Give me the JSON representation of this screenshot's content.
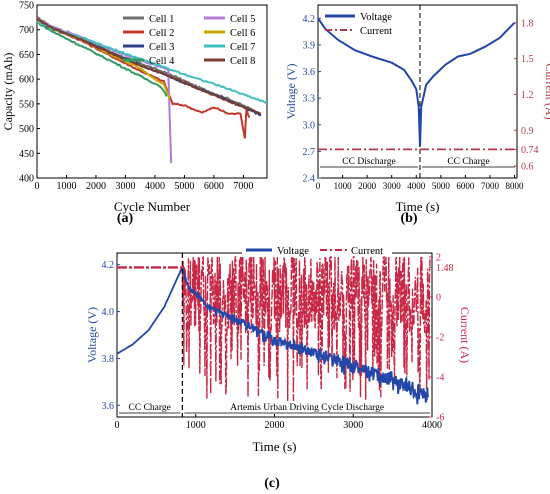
{
  "chart_data": [
    {
      "panel": "(a)",
      "type": "line",
      "xlabel": "Cycle Number",
      "ylabel": "Capacity (mAh)",
      "xlim": [
        0,
        7800
      ],
      "ylim": [
        400,
        750
      ],
      "x_ticks": [
        0,
        1000,
        2000,
        3000,
        4000,
        5000,
        6000,
        7000
      ],
      "y_ticks": [
        400,
        450,
        500,
        550,
        600,
        650,
        700,
        750
      ],
      "legend_placement": "top-right, two columns",
      "series": [
        {
          "name": "Cell 1",
          "color": "#6f6f6f",
          "points": [
            [
              0,
              725
            ],
            [
              500,
              706
            ],
            [
              1500,
              684
            ],
            [
              2500,
              655
            ],
            [
              3500,
              632
            ],
            [
              4500,
              610
            ],
            [
              5500,
              583
            ],
            [
              6500,
              560
            ],
            [
              7500,
              533
            ]
          ]
        },
        {
          "name": "Cell 2",
          "color": "#c0392b",
          "points": [
            [
              0,
              720
            ],
            [
              500,
              703
            ],
            [
              1500,
              678
            ],
            [
              2500,
              647
            ],
            [
              3500,
              617
            ],
            [
              4300,
              595
            ],
            [
              4600,
              550
            ],
            [
              5000,
              547
            ],
            [
              5600,
              532
            ],
            [
              6000,
              543
            ],
            [
              6500,
              530
            ],
            [
              6900,
              530
            ],
            [
              7050,
              480
            ],
            [
              7100,
              540
            ],
            [
              7200,
              522
            ]
          ]
        },
        {
          "name": "Cell 3",
          "color": "#2c3e8c",
          "points": [
            [
              0,
              718
            ],
            [
              500,
              702
            ],
            [
              1500,
              681
            ],
            [
              2500,
              653
            ],
            [
              3500,
              628
            ],
            [
              4500,
              605
            ],
            [
              5500,
              580
            ],
            [
              6500,
              557
            ],
            [
              7600,
              527
            ]
          ]
        },
        {
          "name": "Cell 4",
          "color": "#2e9c62",
          "points": [
            [
              0,
              715
            ],
            [
              500,
              697
            ],
            [
              1500,
              667
            ],
            [
              2500,
              637
            ],
            [
              3500,
              606
            ],
            [
              4200,
              585
            ],
            [
              4400,
              565
            ]
          ]
        },
        {
          "name": "Cell 5",
          "color": "#b07ad9",
          "points": [
            [
              0,
              722
            ],
            [
              500,
              706
            ],
            [
              1500,
              686
            ],
            [
              2500,
              660
            ],
            [
              3500,
              638
            ],
            [
              4200,
              625
            ],
            [
              4450,
              620
            ],
            [
              4550,
              430
            ]
          ]
        },
        {
          "name": "Cell 6",
          "color": "#c8a800",
          "points": [
            [
              0,
              720
            ],
            [
              500,
              703
            ],
            [
              1500,
              680
            ],
            [
              2500,
              650
            ],
            [
              3500,
              622
            ],
            [
              4000,
              600
            ],
            [
              4300,
              590
            ],
            [
              4500,
              560
            ]
          ]
        },
        {
          "name": "Cell 7",
          "color": "#3fbfc0",
          "points": [
            [
              0,
              716
            ],
            [
              500,
              703
            ],
            [
              1500,
              684
            ],
            [
              2500,
              662
            ],
            [
              3500,
              641
            ],
            [
              4500,
              620
            ],
            [
              5500,
              600
            ],
            [
              6500,
              580
            ],
            [
              7800,
              552
            ]
          ]
        },
        {
          "name": "Cell 8",
          "color": "#7a3b2e",
          "points": [
            [
              0,
              722
            ],
            [
              500,
              704
            ],
            [
              1500,
              681
            ],
            [
              2500,
              652
            ],
            [
              3500,
              628
            ],
            [
              4500,
              606
            ],
            [
              5500,
              580
            ],
            [
              6500,
              555
            ],
            [
              7600,
              530
            ]
          ]
        }
      ]
    },
    {
      "panel": "(b)",
      "type": "line",
      "xlabel": "Time (s)",
      "ylabel": "Voltage (V)",
      "y2label": "Current (A)",
      "xlim": [
        0,
        8100
      ],
      "ylim": [
        2.4,
        4.35
      ],
      "y2lim": [
        0.5,
        1.95
      ],
      "x_ticks": [
        0,
        1000,
        2000,
        3000,
        4000,
        5000,
        6000,
        7000,
        8000
      ],
      "y_ticks": [
        2.4,
        2.7,
        3.0,
        3.3,
        3.6,
        3.9,
        4.2
      ],
      "y2_ticks": [
        "0.6",
        "0.74",
        "0.9",
        "1.2",
        "1.5",
        "1.8"
      ],
      "legend_placement": "top-left",
      "annotations": [
        "CC Discharge",
        "CC Charge"
      ],
      "divider_x": 4150,
      "series": [
        {
          "name": "Voltage",
          "axis": "left",
          "color": "#2347a8",
          "points": [
            [
              0,
              4.2
            ],
            [
              300,
              4.08
            ],
            [
              800,
              3.96
            ],
            [
              1500,
              3.84
            ],
            [
              2200,
              3.77
            ],
            [
              3000,
              3.7
            ],
            [
              3500,
              3.62
            ],
            [
              3800,
              3.5
            ],
            [
              4000,
              3.4
            ],
            [
              4100,
              3.2
            ],
            [
              4150,
              2.75
            ],
            [
              4200,
              3.2
            ],
            [
              4400,
              3.45
            ],
            [
              4700,
              3.55
            ],
            [
              5200,
              3.68
            ],
            [
              5700,
              3.77
            ],
            [
              6200,
              3.8
            ],
            [
              6800,
              3.88
            ],
            [
              7400,
              3.98
            ],
            [
              8000,
              4.15
            ]
          ]
        },
        {
          "name": "Current",
          "axis": "right",
          "color": "#b03a4a",
          "points": [
            [
              0,
              0.74
            ],
            [
              8100,
              0.74
            ]
          ]
        }
      ]
    },
    {
      "panel": "(c)",
      "type": "line",
      "xlabel": "Time (s)",
      "ylabel": "Voltage (V)",
      "y2label": "Current (A)",
      "xlim": [
        0,
        4000
      ],
      "ylim": [
        3.55,
        4.25
      ],
      "y2lim": [
        -6,
        2.2
      ],
      "x_ticks": [
        0,
        1000,
        2000,
        3000,
        4000
      ],
      "y_ticks": [
        3.6,
        3.8,
        4.0,
        4.2
      ],
      "y2_ticks": [
        "-6",
        "-4",
        "-2",
        "0",
        "1.48",
        "2"
      ],
      "legend_placement": "top, horizontal",
      "annotations": [
        "CC Charge",
        "Artemis Urban Driving Cycle Discharge"
      ],
      "divider_x": 830,
      "charge_current": 1.48,
      "series": [
        {
          "name": "Voltage",
          "axis": "left",
          "color": "#2347a8",
          "points": [
            [
              0,
              3.82
            ],
            [
              200,
              3.86
            ],
            [
              400,
              3.92
            ],
            [
              600,
              4.02
            ],
            [
              830,
              4.19
            ],
            [
              900,
              4.12
            ],
            [
              1200,
              4.02
            ],
            [
              1600,
              3.97
            ],
            [
              2000,
              3.9
            ],
            [
              2500,
              3.85
            ],
            [
              3000,
              3.8
            ],
            [
              3500,
              3.74
            ],
            [
              3950,
              3.68
            ]
          ]
        },
        {
          "name": "Current",
          "axis": "right",
          "color": "#c82846",
          "points": [
            [
              0,
              1.48
            ],
            [
              830,
              1.48
            ]
          ]
        }
      ]
    }
  ],
  "labels": {
    "panel_a": "(a)",
    "panel_b": "(b)",
    "panel_c": "(c)"
  }
}
